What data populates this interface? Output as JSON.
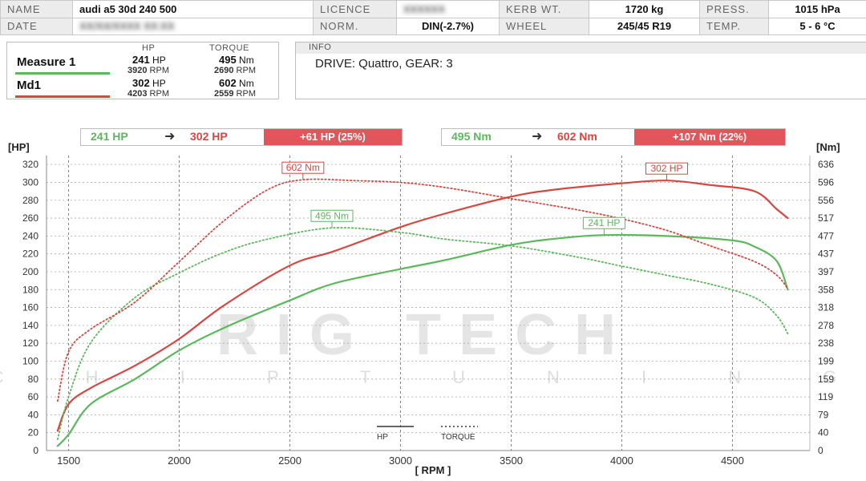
{
  "header": {
    "name_label": "NAME",
    "name_value": "audi a5 30d 240 500",
    "licence_label": "LICENCE",
    "licence_value": "XXXXXX",
    "kerb_label": "KERB WT.",
    "kerb_value": "1720 kg",
    "press_label": "PRESS.",
    "press_value": "1015 hPa",
    "date_label": "DATE",
    "date_value": "XX/XX/XXXX XX:XX",
    "norm_label": "NORM.",
    "norm_value": "DIN(-2.7%)",
    "wheel_label": "WHEEL",
    "wheel_value": "245/45 R19",
    "temp_label": "TEMP.",
    "temp_value": "5 - 6 °C"
  },
  "legend": {
    "hp_head": "HP",
    "torque_head": "TORQUE",
    "hp_unit": "HP",
    "nm_unit": "Nm",
    "rpm_unit": "RPM",
    "measures": [
      {
        "name": "Measure 1",
        "color": "#5cb85c",
        "hp": "241",
        "hp_rpm": "3920",
        "nm": "495",
        "nm_rpm": "2690"
      },
      {
        "name": "Md1",
        "color": "#d9453f",
        "hp": "302",
        "hp_rpm": "4203",
        "nm": "602",
        "nm_rpm": "2559"
      }
    ]
  },
  "info": {
    "label": "INFO",
    "text": "DRIVE: Quattro,  GEAR: 3"
  },
  "comparison": {
    "hp": {
      "from": "241 HP",
      "to": "302 HP",
      "gain": "+61 HP  (25%)"
    },
    "nm": {
      "from": "495 Nm",
      "to": "602 Nm",
      "gain": "+107 Nm  (22%)"
    }
  },
  "colors": {
    "measure1": "#5cb85c",
    "md1": "#d9453f",
    "grid": "#999999",
    "watermark": "#cfcfcf"
  },
  "watermark": {
    "brand": "RIG TECH",
    "sub": "C H I P   T U N I N G"
  },
  "chart_data": {
    "type": "line",
    "xlabel": "[ RPM ]",
    "ylabel_left": "[HP]",
    "ylabel_right": "[Nm]",
    "xlim": [
      1400,
      4850
    ],
    "x_ticks": [
      1500,
      2000,
      2500,
      3000,
      3500,
      4000,
      4500
    ],
    "ylim_left": [
      0,
      330
    ],
    "y_ticks_left": [
      0,
      20,
      40,
      60,
      80,
      100,
      120,
      140,
      160,
      180,
      200,
      220,
      240,
      260,
      280,
      300,
      320
    ],
    "y_ticks_right": [
      "0",
      "40",
      "79",
      "119",
      "159",
      "199",
      "238",
      "278",
      "318",
      "358",
      "397",
      "437",
      "477",
      "517",
      "556",
      "596",
      "636"
    ],
    "grid": true,
    "legend_items": [
      {
        "label": "HP",
        "style": "solid"
      },
      {
        "label": "TORQUE",
        "style": "dotted"
      }
    ],
    "series": [
      {
        "name": "Measure 1",
        "kind": "HP",
        "axis": "left",
        "color": "#5cb85c",
        "style": "solid",
        "x": [
          1450,
          1500,
          1600,
          1800,
          2000,
          2200,
          2500,
          2700,
          3000,
          3200,
          3500,
          3700,
          3920,
          4200,
          4500,
          4600,
          4700,
          4750
        ],
        "y": [
          5,
          18,
          52,
          80,
          112,
          137,
          168,
          187,
          203,
          213,
          230,
          237,
          241,
          240,
          235,
          228,
          212,
          180
        ]
      },
      {
        "name": "Md1",
        "kind": "HP",
        "axis": "left",
        "color": "#d9453f",
        "style": "solid",
        "x": [
          1450,
          1500,
          1600,
          1800,
          2000,
          2200,
          2500,
          2700,
          3000,
          3200,
          3500,
          3700,
          4000,
          4203,
          4400,
          4600,
          4700,
          4750
        ],
        "y": [
          22,
          52,
          70,
          95,
          125,
          162,
          207,
          223,
          250,
          265,
          284,
          292,
          299,
          302,
          297,
          290,
          270,
          260
        ]
      },
      {
        "name": "Measure 1",
        "kind": "TORQUE",
        "axis": "right",
        "color": "#5cb85c",
        "style": "dotted",
        "x": [
          1450,
          1500,
          1600,
          1800,
          2000,
          2200,
          2400,
          2690,
          3000,
          3200,
          3500,
          3800,
          4000,
          4200,
          4400,
          4600,
          4700,
          4750
        ],
        "y": [
          25,
          120,
          240,
          340,
          395,
          440,
          470,
          495,
          485,
          470,
          455,
          430,
          410,
          390,
          370,
          340,
          300,
          260
        ]
      },
      {
        "name": "Md1",
        "kind": "TORQUE",
        "axis": "right",
        "color": "#d9453f",
        "style": "dotted",
        "x": [
          1450,
          1500,
          1600,
          1800,
          2000,
          2200,
          2400,
          2559,
          2800,
          3000,
          3200,
          3500,
          3800,
          4000,
          4200,
          4400,
          4600,
          4700,
          4750
        ],
        "y": [
          110,
          220,
          270,
          330,
          420,
          510,
          580,
          602,
          600,
          596,
          585,
          560,
          535,
          515,
          490,
          455,
          420,
          390,
          360
        ]
      }
    ],
    "annotations": [
      {
        "text": "602 Nm",
        "axis": "right",
        "x": 2559,
        "y": 602,
        "color": "#d9453f"
      },
      {
        "text": "495 Nm",
        "axis": "right",
        "x": 2690,
        "y": 495,
        "color": "#5cb85c"
      },
      {
        "text": "302 HP",
        "axis": "left",
        "x": 4203,
        "y": 302,
        "color": "#d9453f"
      },
      {
        "text": "241 HP",
        "axis": "left",
        "x": 3920,
        "y": 241,
        "color": "#5cb85c"
      }
    ]
  }
}
